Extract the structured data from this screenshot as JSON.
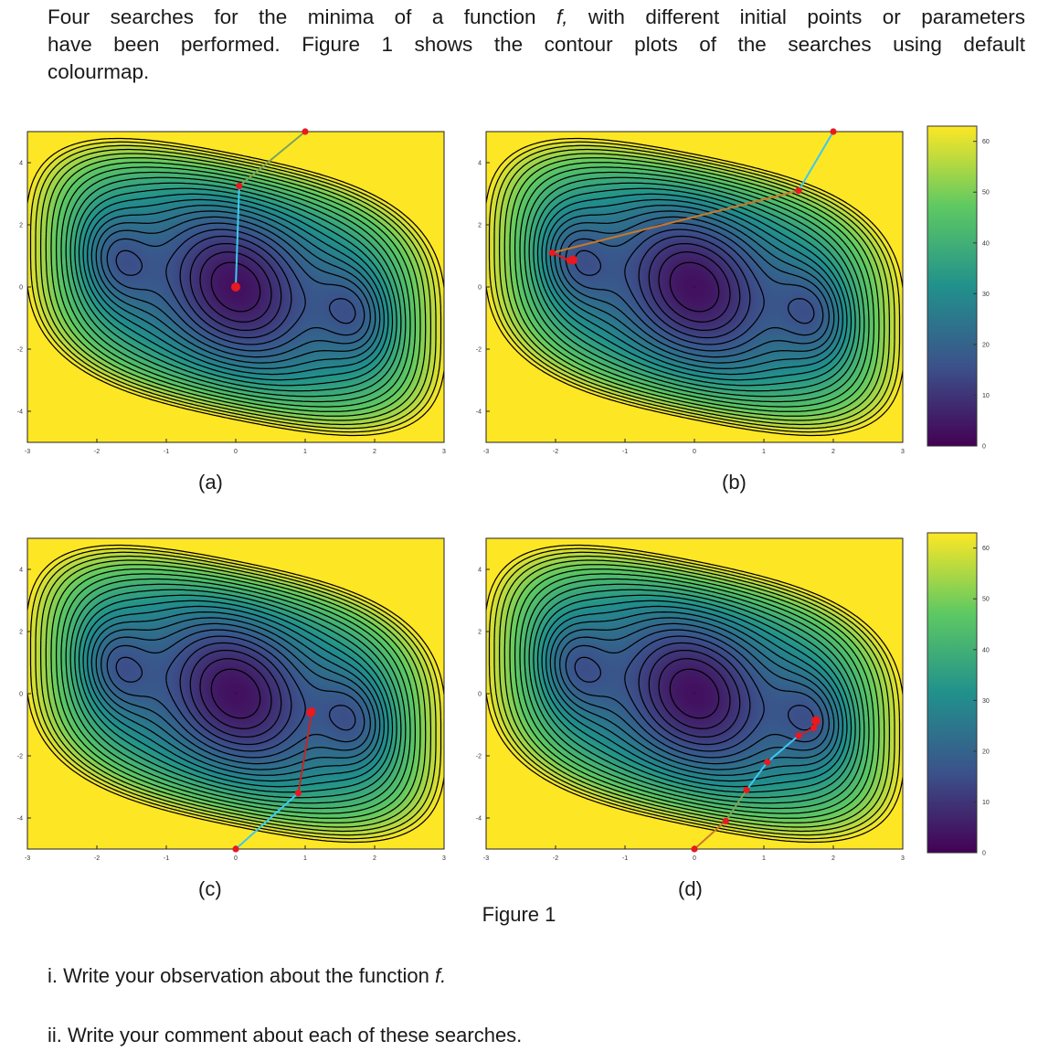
{
  "intro": {
    "line1": "Four searches for the minima of a function",
    "line1_var": "f,",
    "line1_tail": "with different initial points or parameters",
    "line2": "have been performed. Figure 1 shows the contour plots of the searches using default",
    "line3": "colourmap."
  },
  "figure_caption": "Figure 1",
  "questions": {
    "q1_prefix": "i. Write your observation about the function",
    "q1_var": "f.",
    "q2": "ii. Write your comment about each of these searches."
  },
  "colors": {
    "cmap_low": "#440154",
    "cmap_mid_low": "#3b528b",
    "cmap_mid": "#21918c",
    "cmap_mid_high": "#5ec962",
    "cmap_high": "#fde725",
    "contour": "#000000",
    "marker": "#e8191f"
  },
  "chart_data": [
    {
      "type": "contour",
      "caption": "(a)",
      "xlim": [
        -3,
        3
      ],
      "ylim": [
        -5,
        5
      ],
      "x_ticks": [
        -3,
        -2,
        -1,
        0,
        1,
        2,
        3
      ],
      "y_ticks": [
        -4,
        -2,
        0,
        2,
        4
      ],
      "minima": [
        [
          -1.75,
          0.87
        ],
        [
          0,
          0
        ],
        [
          1.75,
          -0.87
        ]
      ],
      "search_path": {
        "points": [
          [
            1,
            5
          ],
          [
            0.05,
            3.25
          ],
          [
            0,
            0
          ]
        ],
        "segment_colors": [
          "#7aa35a",
          "#3cc8f0"
        ]
      }
    },
    {
      "type": "contour",
      "caption": "(b)",
      "xlim": [
        -3,
        3
      ],
      "ylim": [
        -5,
        5
      ],
      "x_ticks": [
        -3,
        -2,
        -1,
        0,
        1,
        2,
        3
      ],
      "y_ticks": [
        -4,
        -2,
        0,
        2,
        4
      ],
      "minima": [
        [
          -1.75,
          0.87
        ],
        [
          0,
          0
        ],
        [
          1.75,
          -0.87
        ]
      ],
      "search_path": {
        "points": [
          [
            2,
            5
          ],
          [
            1.5,
            3.1
          ],
          [
            -2.05,
            1.1
          ],
          [
            -1.8,
            0.85
          ],
          [
            -1.75,
            0.87
          ]
        ],
        "segment_colors": [
          "#3cc8f0",
          "#c8782a",
          "#e8191f",
          "#e8191f"
        ]
      }
    },
    {
      "type": "contour",
      "caption": "(c)",
      "xlim": [
        -3,
        3
      ],
      "ylim": [
        -5,
        5
      ],
      "x_ticks": [
        -3,
        -2,
        -1,
        0,
        1,
        2,
        3
      ],
      "y_ticks": [
        -4,
        -2,
        0,
        2,
        4
      ],
      "minima": [
        [
          -1.75,
          0.87
        ],
        [
          0,
          0
        ],
        [
          1.75,
          -0.87
        ]
      ],
      "search_path": {
        "points": [
          [
            0,
            -5
          ],
          [
            0.9,
            -3.2
          ],
          [
            1.1,
            -0.55
          ],
          [
            1.08,
            -0.6
          ]
        ],
        "segment_colors": [
          "#3cc8f0",
          "#c0282a",
          "#e8191f"
        ]
      }
    },
    {
      "type": "contour",
      "caption": "(d)",
      "xlim": [
        -3,
        3
      ],
      "ylim": [
        -5,
        5
      ],
      "x_ticks": [
        -3,
        -2,
        -1,
        0,
        1,
        2,
        3
      ],
      "y_ticks": [
        -4,
        -2,
        0,
        2,
        4
      ],
      "minima": [
        [
          -1.75,
          0.87
        ],
        [
          0,
          0
        ],
        [
          1.75,
          -0.87
        ]
      ],
      "search_path": {
        "points": [
          [
            0,
            -5
          ],
          [
            0.45,
            -4.1
          ],
          [
            0.75,
            -3.1
          ],
          [
            1.05,
            -2.2
          ],
          [
            1.5,
            -1.35
          ],
          [
            1.72,
            -1.1
          ],
          [
            1.75,
            -0.87
          ]
        ],
        "segment_colors": [
          "#c8782a",
          "#7aa35a",
          "#3cc8f0",
          "#3cc8f0",
          "#c0282a",
          "#e8191f"
        ]
      }
    },
    {
      "type": "colorbar",
      "range": [
        0,
        63
      ],
      "ticks": [
        0,
        10,
        20,
        30,
        40,
        50,
        60
      ]
    },
    {
      "type": "colorbar",
      "range": [
        0,
        63
      ],
      "ticks": [
        0,
        10,
        20,
        30,
        40,
        50,
        60
      ]
    }
  ]
}
